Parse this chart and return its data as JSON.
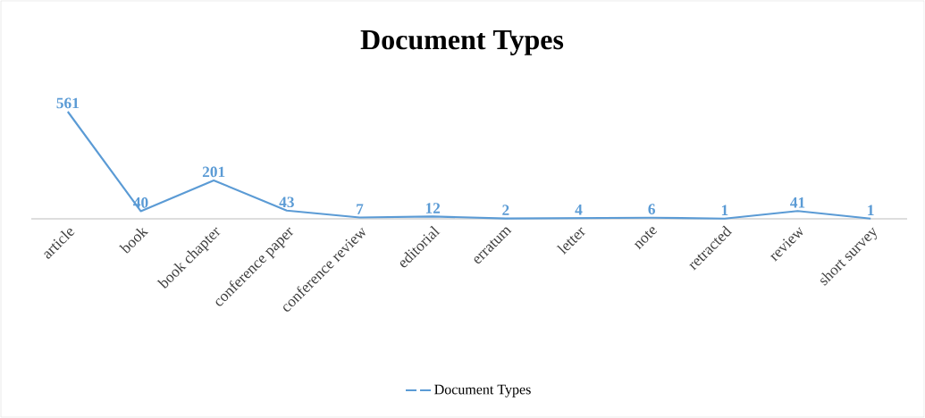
{
  "chart_data": {
    "type": "line",
    "title": "Document Types",
    "categories": [
      "article",
      "book",
      "book chapter",
      "conference paper",
      "conference review",
      "editorial",
      "erratum",
      "letter",
      "note",
      "retracted",
      "review",
      "short survey"
    ],
    "series": [
      {
        "name": "Document Types",
        "color": "#5b9bd5",
        "values": [
          561,
          40,
          201,
          43,
          7,
          12,
          2,
          4,
          6,
          1,
          41,
          1
        ]
      }
    ],
    "data_labels": true,
    "legend": "bottom"
  }
}
